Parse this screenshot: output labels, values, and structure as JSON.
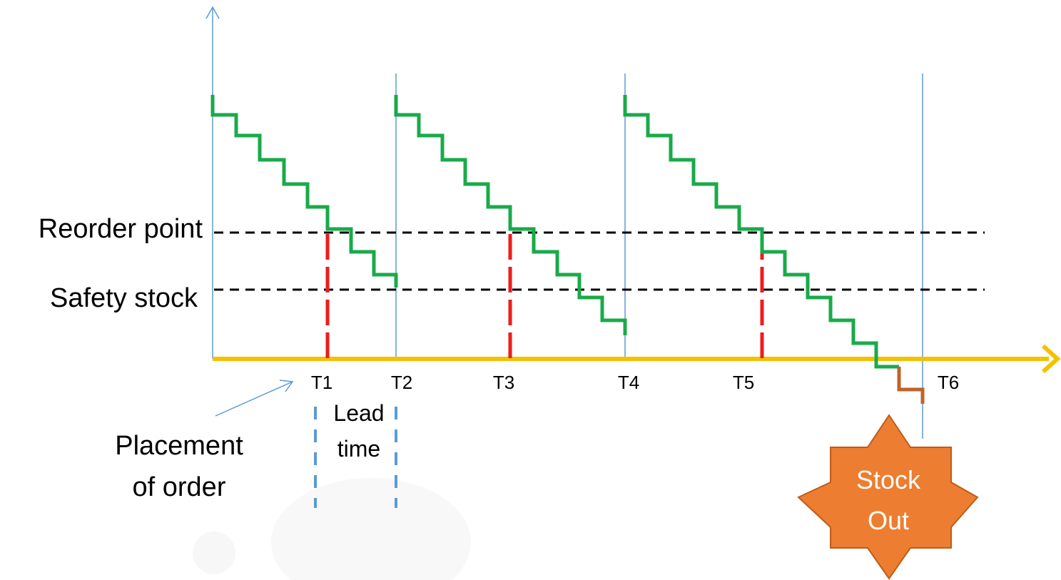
{
  "labels": {
    "reorder_point": "Reorder point",
    "safety_stock": "Safety stock",
    "placement_line1": "Placement",
    "placement_line2": "of  order",
    "lead_line1": "Lead",
    "lead_line2": "time",
    "stock_out_line1": "Stock",
    "stock_out_line2": "Out"
  },
  "ticks": [
    "T1",
    "T2",
    "T3",
    "T4",
    "T5",
    "T6"
  ],
  "colors": {
    "inventory_line": "#1aaa4a",
    "stockout_segment": "#c0622a",
    "reorder_marker": "#ee1c1c",
    "time_axis": "#f5c000",
    "vertical_axis": "#5b9bd5",
    "lead_time_marker": "#5b9bd5",
    "thresholds": "#000000",
    "stock_out_burst": "#ed7d31",
    "stock_out_text": "#ffffff"
  },
  "icons": {
    "y_axis_arrow": "arrow-up-icon",
    "x_axis_arrow": "arrow-right-icon",
    "placement_pointer": "arrow-pointer-icon",
    "stock_out_badge": "star-burst-icon"
  }
}
